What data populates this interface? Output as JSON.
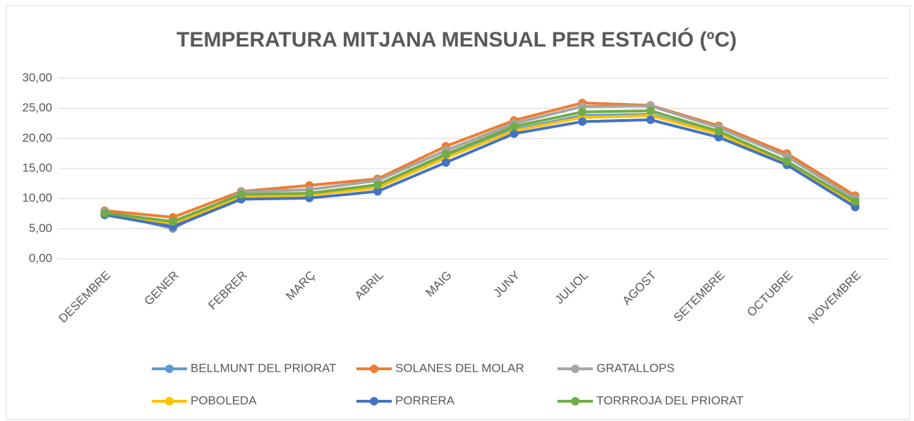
{
  "chart_data": {
    "type": "line",
    "title": "TEMPERATURA MITJANA MENSUAL PER ESTACIÓ (ºC)",
    "categories": [
      "DESEMBRE",
      "GENER",
      "FEBRER",
      "MARÇ",
      "ABRIL",
      "MAIG",
      "JUNY",
      "JULIOL",
      "AGOST",
      "SETEMBRE",
      "OCTUBRE",
      "NOVEMBRE"
    ],
    "series": [
      {
        "name": "BELLMUNT DEL PRIORAT",
        "color": "#5b9bd5",
        "values": [
          7.6,
          5.6,
          10.3,
          10.6,
          12.0,
          17.0,
          21.5,
          23.8,
          24.0,
          20.8,
          16.0,
          9.0
        ]
      },
      {
        "name": "SOLANES DEL MOLAR",
        "color": "#ed7d31",
        "values": [
          8.0,
          6.9,
          11.2,
          12.2,
          13.3,
          18.7,
          23.0,
          25.9,
          25.5,
          22.1,
          17.5,
          10.5
        ]
      },
      {
        "name": "GRATALLOPS",
        "color": "#a5a5a5",
        "values": [
          7.8,
          5.0,
          11.1,
          11.5,
          13.0,
          18.0,
          22.5,
          25.3,
          25.4,
          21.8,
          17.0,
          10.0
        ]
      },
      {
        "name": "POBOLEDA",
        "color": "#ffc000",
        "values": [
          7.5,
          5.9,
          10.3,
          10.6,
          11.8,
          16.8,
          21.3,
          23.5,
          23.8,
          20.8,
          15.9,
          9.0
        ]
      },
      {
        "name": "PORRERA",
        "color": "#4472c4",
        "values": [
          7.3,
          5.3,
          9.9,
          10.1,
          11.2,
          16.0,
          20.8,
          22.8,
          23.1,
          20.2,
          15.6,
          8.6
        ]
      },
      {
        "name": "TORRROJA DEL PRIORAT",
        "color": "#70ad47",
        "values": [
          7.6,
          6.2,
          10.7,
          10.9,
          12.3,
          17.4,
          22.0,
          24.4,
          24.6,
          21.2,
          16.2,
          9.5
        ]
      }
    ],
    "ylim": [
      0,
      30
    ],
    "yticks": [
      {
        "value": 0,
        "label": "0,00"
      },
      {
        "value": 5,
        "label": "5,00"
      },
      {
        "value": 10,
        "label": "10,00"
      },
      {
        "value": 15,
        "label": "15,00"
      },
      {
        "value": 20,
        "label": "20,00"
      },
      {
        "value": 25,
        "label": "25,00"
      },
      {
        "value": 30,
        "label": "30,00"
      }
    ],
    "grid": true,
    "legend": "bottom"
  }
}
